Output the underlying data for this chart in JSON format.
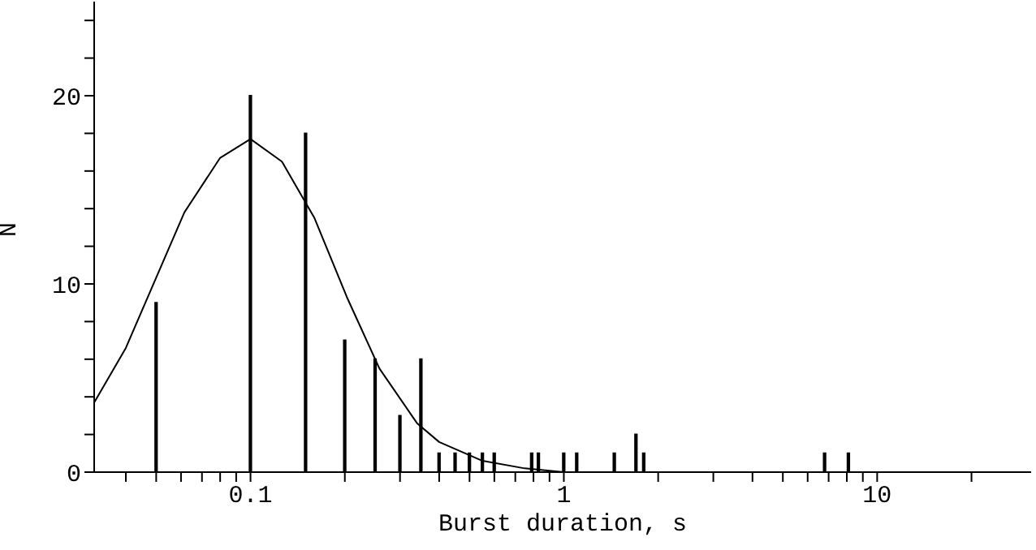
{
  "chart_data": {
    "type": "bar",
    "xlabel": "Burst duration, s",
    "ylabel": "N",
    "log": "x",
    "x": [
      0.05,
      0.1,
      0.15,
      0.2,
      0.25,
      0.3,
      0.35,
      0.4,
      0.45,
      0.5,
      0.55,
      0.6,
      0.79,
      0.83,
      1.0,
      1.1,
      1.45,
      1.7,
      1.8,
      6.8,
      8.1
    ],
    "series": [
      {
        "color": "#000000",
        "values": [
          9,
          20,
          18,
          7,
          6,
          3,
          6,
          1,
          1,
          1,
          1,
          1,
          1,
          1,
          1,
          1,
          1,
          2,
          1,
          1,
          1
        ]
      },
      {
        "type": "line",
        "color": "#000000",
        "x": [
          0.0317,
          0.04,
          0.0615,
          0.08,
          0.1,
          0.126,
          0.16,
          0.203,
          0.258,
          0.34,
          0.4,
          0.55,
          0.75,
          1,
          3,
          10,
          30
        ],
        "values": [
          3.7,
          6.6,
          13.8,
          16.7,
          17.7,
          16.5,
          13.5,
          9.3,
          5.5,
          2.6,
          1.6,
          0.6,
          0.2,
          0,
          0,
          0,
          0
        ]
      }
    ],
    "xlim": [
      0.0317,
      31
    ],
    "xticks": [
      {
        "value": 0.04,
        "label": null
      },
      {
        "value": 0.05,
        "label": null
      },
      {
        "value": 0.06,
        "label": null
      },
      {
        "value": 0.07,
        "label": null
      },
      {
        "value": 0.08,
        "label": null
      },
      {
        "value": 0.09,
        "label": null
      },
      0.1,
      {
        "value": 0.2,
        "label": null
      },
      {
        "value": 0.3,
        "label": null
      },
      {
        "value": 0.4,
        "label": null
      },
      {
        "value": 0.5,
        "label": null
      },
      {
        "value": 0.6,
        "label": null
      },
      {
        "value": 0.7,
        "label": null
      },
      {
        "value": 0.8,
        "label": null
      },
      {
        "value": 0.9,
        "label": null
      },
      1,
      {
        "value": 2,
        "label": null
      },
      {
        "value": 3,
        "label": null
      },
      {
        "value": 4,
        "label": null
      },
      {
        "value": 5,
        "label": null
      },
      {
        "value": 6,
        "label": null
      },
      {
        "value": 7,
        "label": null
      },
      {
        "value": 8,
        "label": null
      },
      {
        "value": 9,
        "label": null
      },
      10,
      {
        "value": 20,
        "label": null
      }
    ],
    "ylim": [
      0,
      25
    ],
    "yticks": [
      0,
      {
        "value": 2,
        "label": null
      },
      {
        "value": 4,
        "label": null
      },
      {
        "value": 6,
        "label": null
      },
      {
        "value": 8,
        "label": null
      },
      10,
      {
        "value": 12,
        "label": null
      },
      {
        "value": 14,
        "label": null
      },
      {
        "value": 16,
        "label": null
      },
      {
        "value": 18,
        "label": null
      },
      20,
      {
        "value": 22,
        "label": null
      },
      {
        "value": 24,
        "label": null
      }
    ],
    "grid": false,
    "legend": false,
    "marker": "none",
    "line_style": "solid"
  }
}
